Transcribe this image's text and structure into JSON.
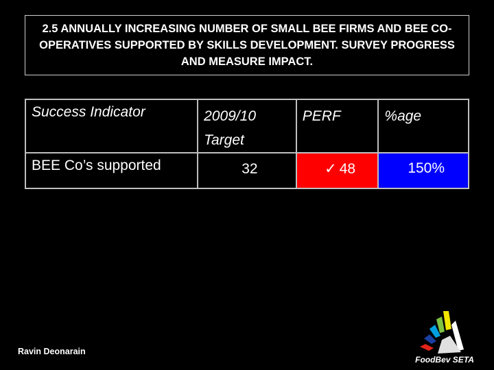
{
  "slide": {
    "title": "2.5 ANNUALLY INCREASING NUMBER OF SMALL BEE FIRMS AND BEE CO-OPERATIVES SUPPORTED BY SKILLS DEVELOPMENT. SURVEY PROGRESS AND MEASURE IMPACT.",
    "author": "Ravin Deonarain",
    "logo_text": "FoodBev SETA"
  },
  "table": {
    "headers": {
      "indicator": "Success Indicator",
      "target_line1": "2009/10",
      "target_line2": "Target",
      "perf": "PERF",
      "pct": "%age"
    },
    "rows": [
      {
        "indicator": "BEE Co’s supported",
        "target": "32",
        "perf_mark": "✓",
        "perf": "48",
        "pct": "150%"
      }
    ]
  },
  "colors": {
    "perf_cell": "#ff0000",
    "pct_cell": "#0000ff"
  }
}
